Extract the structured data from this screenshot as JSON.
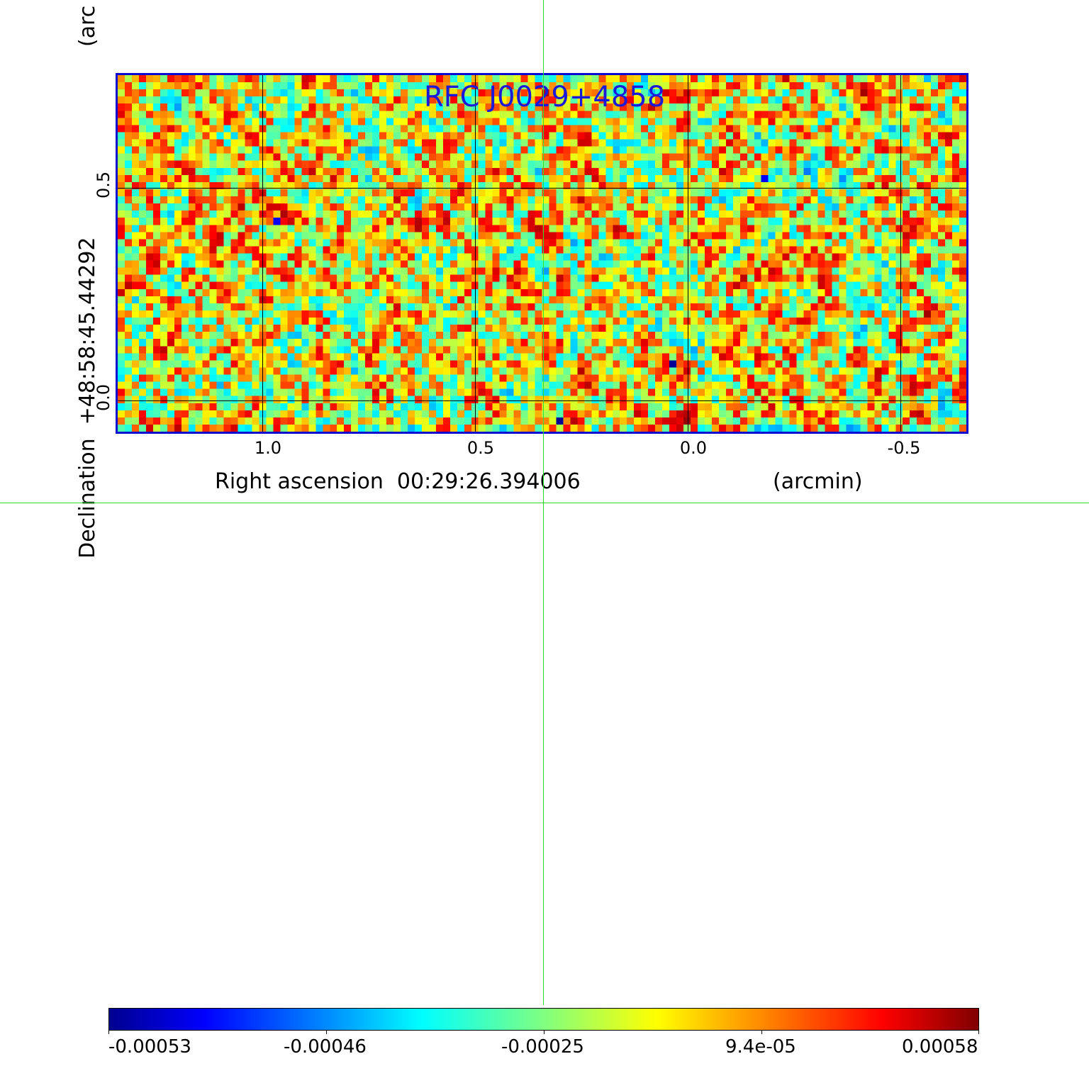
{
  "title": "RFC J0029+4858",
  "x_axis": {
    "label": "Right ascension  00:29:26.394006",
    "unit": "(arcmin)",
    "ticks": [
      "1.0",
      "0.5",
      "0.0",
      "-0.5"
    ]
  },
  "y_axis": {
    "label": "Declination  +48:58:45.44292",
    "unit": "(arc",
    "ticks": [
      "0.5",
      "0.0"
    ]
  },
  "colorbar": {
    "colormap": "jet",
    "tick_labels": [
      "-0.00053",
      "-0.00046",
      "-0.00025",
      "9.4e-05",
      "0.00058"
    ]
  },
  "colors": {
    "frame": "#0a0ad0",
    "title": "#1a1ad8",
    "crosshair": "#33dd33"
  }
}
